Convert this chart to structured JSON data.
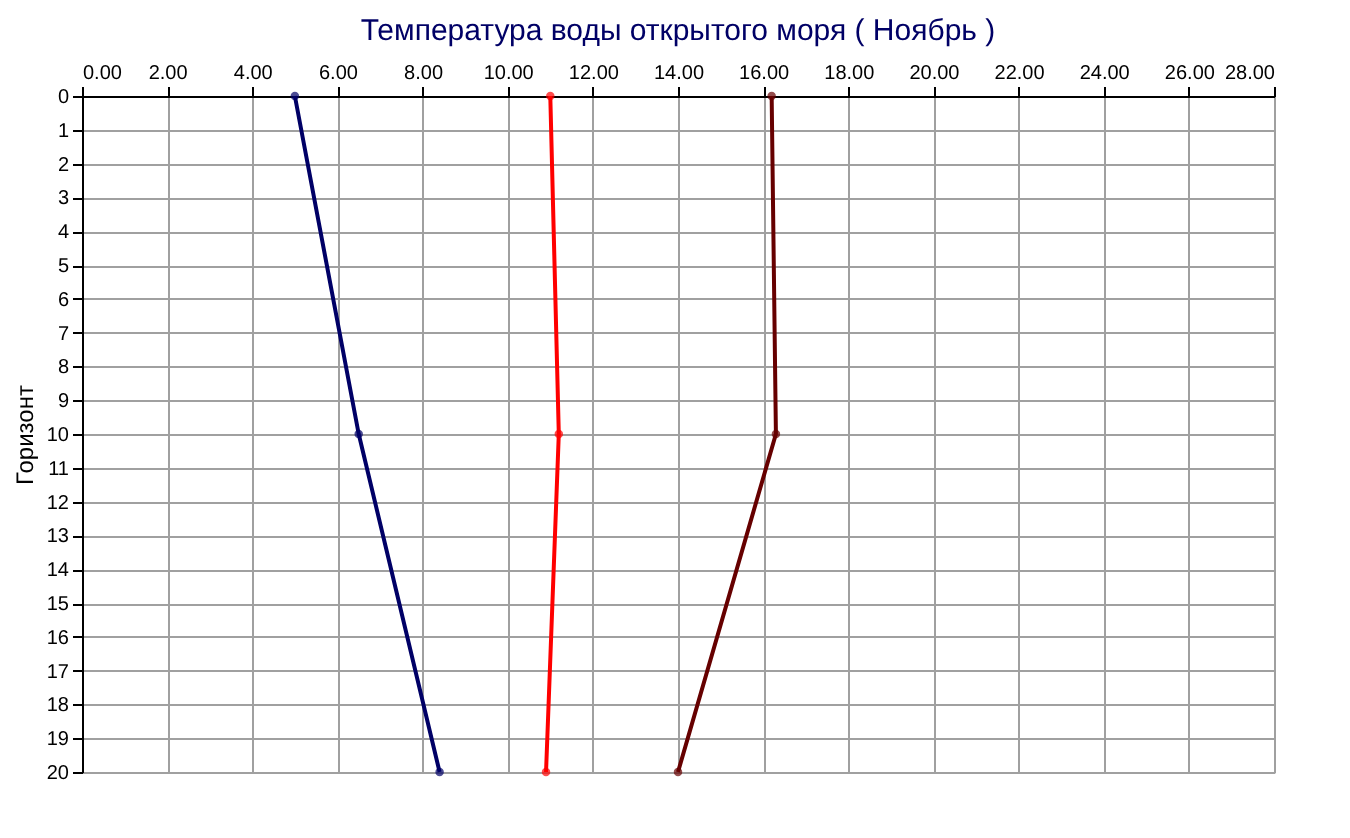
{
  "chart_data": {
    "type": "line",
    "title": "Температура воды открытого моря     ( Ноябрь )",
    "ylabel": "Горизонт",
    "xlim": [
      0,
      28
    ],
    "xticks": [
      {
        "value": 0,
        "label": "0.00"
      },
      {
        "value": 2,
        "label": "2.00"
      },
      {
        "value": 4,
        "label": "4.00"
      },
      {
        "value": 6,
        "label": "6.00"
      },
      {
        "value": 8,
        "label": "8.00"
      },
      {
        "value": 10,
        "label": "10.00"
      },
      {
        "value": 12,
        "label": "12.00"
      },
      {
        "value": 14,
        "label": "14.00"
      },
      {
        "value": 16,
        "label": "16.00"
      },
      {
        "value": 18,
        "label": "18.00"
      },
      {
        "value": 20,
        "label": "20.00"
      },
      {
        "value": 22,
        "label": "22.00"
      },
      {
        "value": 24,
        "label": "24.00"
      },
      {
        "value": 26,
        "label": "26.00"
      },
      {
        "value": 28,
        "label": "28.00"
      }
    ],
    "ylim": [
      20,
      0
    ],
    "yticks": [
      0,
      1,
      2,
      3,
      4,
      5,
      6,
      7,
      8,
      9,
      10,
      11,
      12,
      13,
      14,
      15,
      16,
      17,
      18,
      19,
      20
    ],
    "grid": true,
    "marker": "circle",
    "line_style": "solid",
    "series": [
      {
        "color": "#000066",
        "x": [
          5.0,
          6.5,
          8.4
        ],
        "values": [
          0,
          10,
          20
        ]
      },
      {
        "color": "#ff0000",
        "x": [
          11.0,
          11.2,
          10.9
        ],
        "values": [
          0,
          10,
          20
        ]
      },
      {
        "color": "#660000",
        "x": [
          16.2,
          16.3,
          14.0
        ],
        "values": [
          0,
          10,
          20
        ]
      }
    ]
  }
}
